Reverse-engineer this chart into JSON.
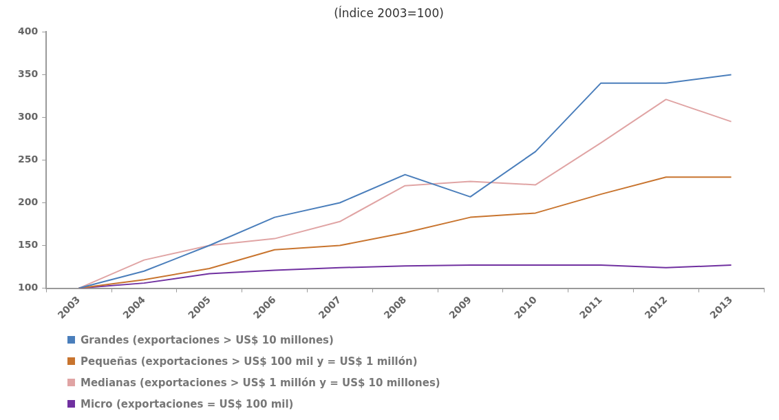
{
  "chart_data": {
    "type": "line",
    "title": "(Índice 2003=100)",
    "categories": [
      "2003",
      "2004",
      "2005",
      "2006",
      "2007",
      "2008",
      "2009",
      "2010",
      "2011",
      "2012",
      "2013"
    ],
    "series": [
      {
        "name": "Grandes (exportaciones > US$ 10 millones)",
        "color": "#4a7ebb",
        "values": [
          100,
          120,
          150,
          183,
          200,
          233,
          207,
          260,
          340,
          340,
          350
        ]
      },
      {
        "name": "Pequeñas (exportaciones > US$ 100 mil y = US$ 1 millón)",
        "color": "#c8742e",
        "values": [
          100,
          110,
          123,
          145,
          150,
          165,
          183,
          188,
          210,
          230,
          230
        ]
      },
      {
        "name": "Medianas (exportaciones > US$ 1 millón y = US$ 10 millones)",
        "color": "#e0a4a4",
        "values": [
          100,
          133,
          150,
          158,
          178,
          220,
          225,
          221,
          270,
          321,
          295
        ]
      },
      {
        "name": "Micro (exportaciones = US$ 100 mil)",
        "color": "#7030a0",
        "values": [
          100,
          106,
          117,
          121,
          124,
          126,
          127,
          127,
          127,
          124,
          127
        ]
      }
    ],
    "ylim": [
      100,
      400
    ],
    "yticks": [
      100,
      150,
      200,
      250,
      300,
      350,
      400
    ],
    "grid": false,
    "legend": "bottom",
    "marker": "none",
    "line_style": "solid"
  }
}
